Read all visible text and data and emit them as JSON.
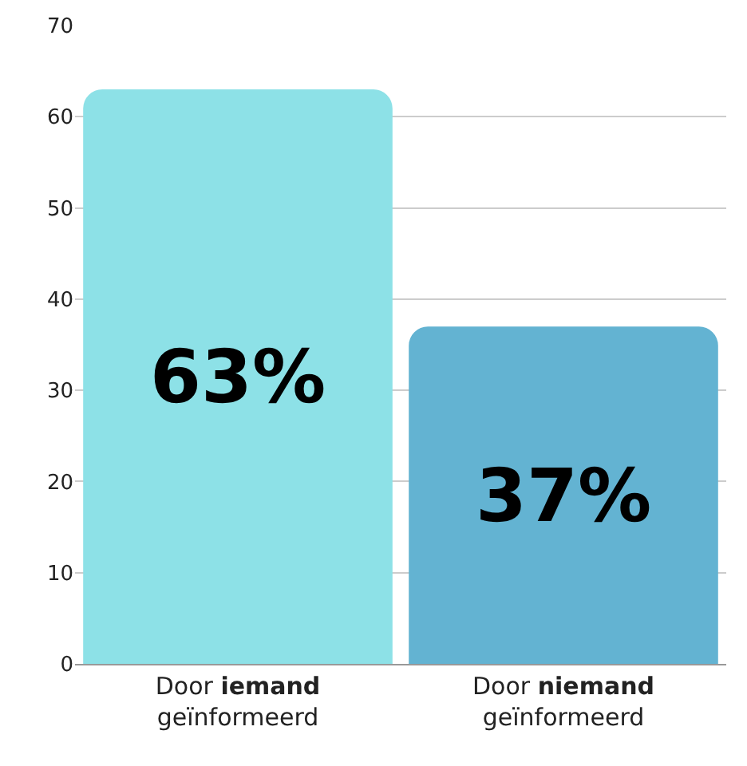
{
  "chart_data": {
    "type": "bar",
    "categories": [
      "Door iemand geïnformeerd",
      "Door niemand geïnformeerd"
    ],
    "values": [
      63,
      37
    ],
    "colors": [
      "#8de1e7",
      "#63b3d2"
    ],
    "value_labels": [
      "63%",
      "37%"
    ],
    "ylim": [
      0,
      70
    ],
    "yticks": [
      0,
      10,
      20,
      30,
      40,
      50,
      60,
      70
    ],
    "grid": "y"
  }
}
